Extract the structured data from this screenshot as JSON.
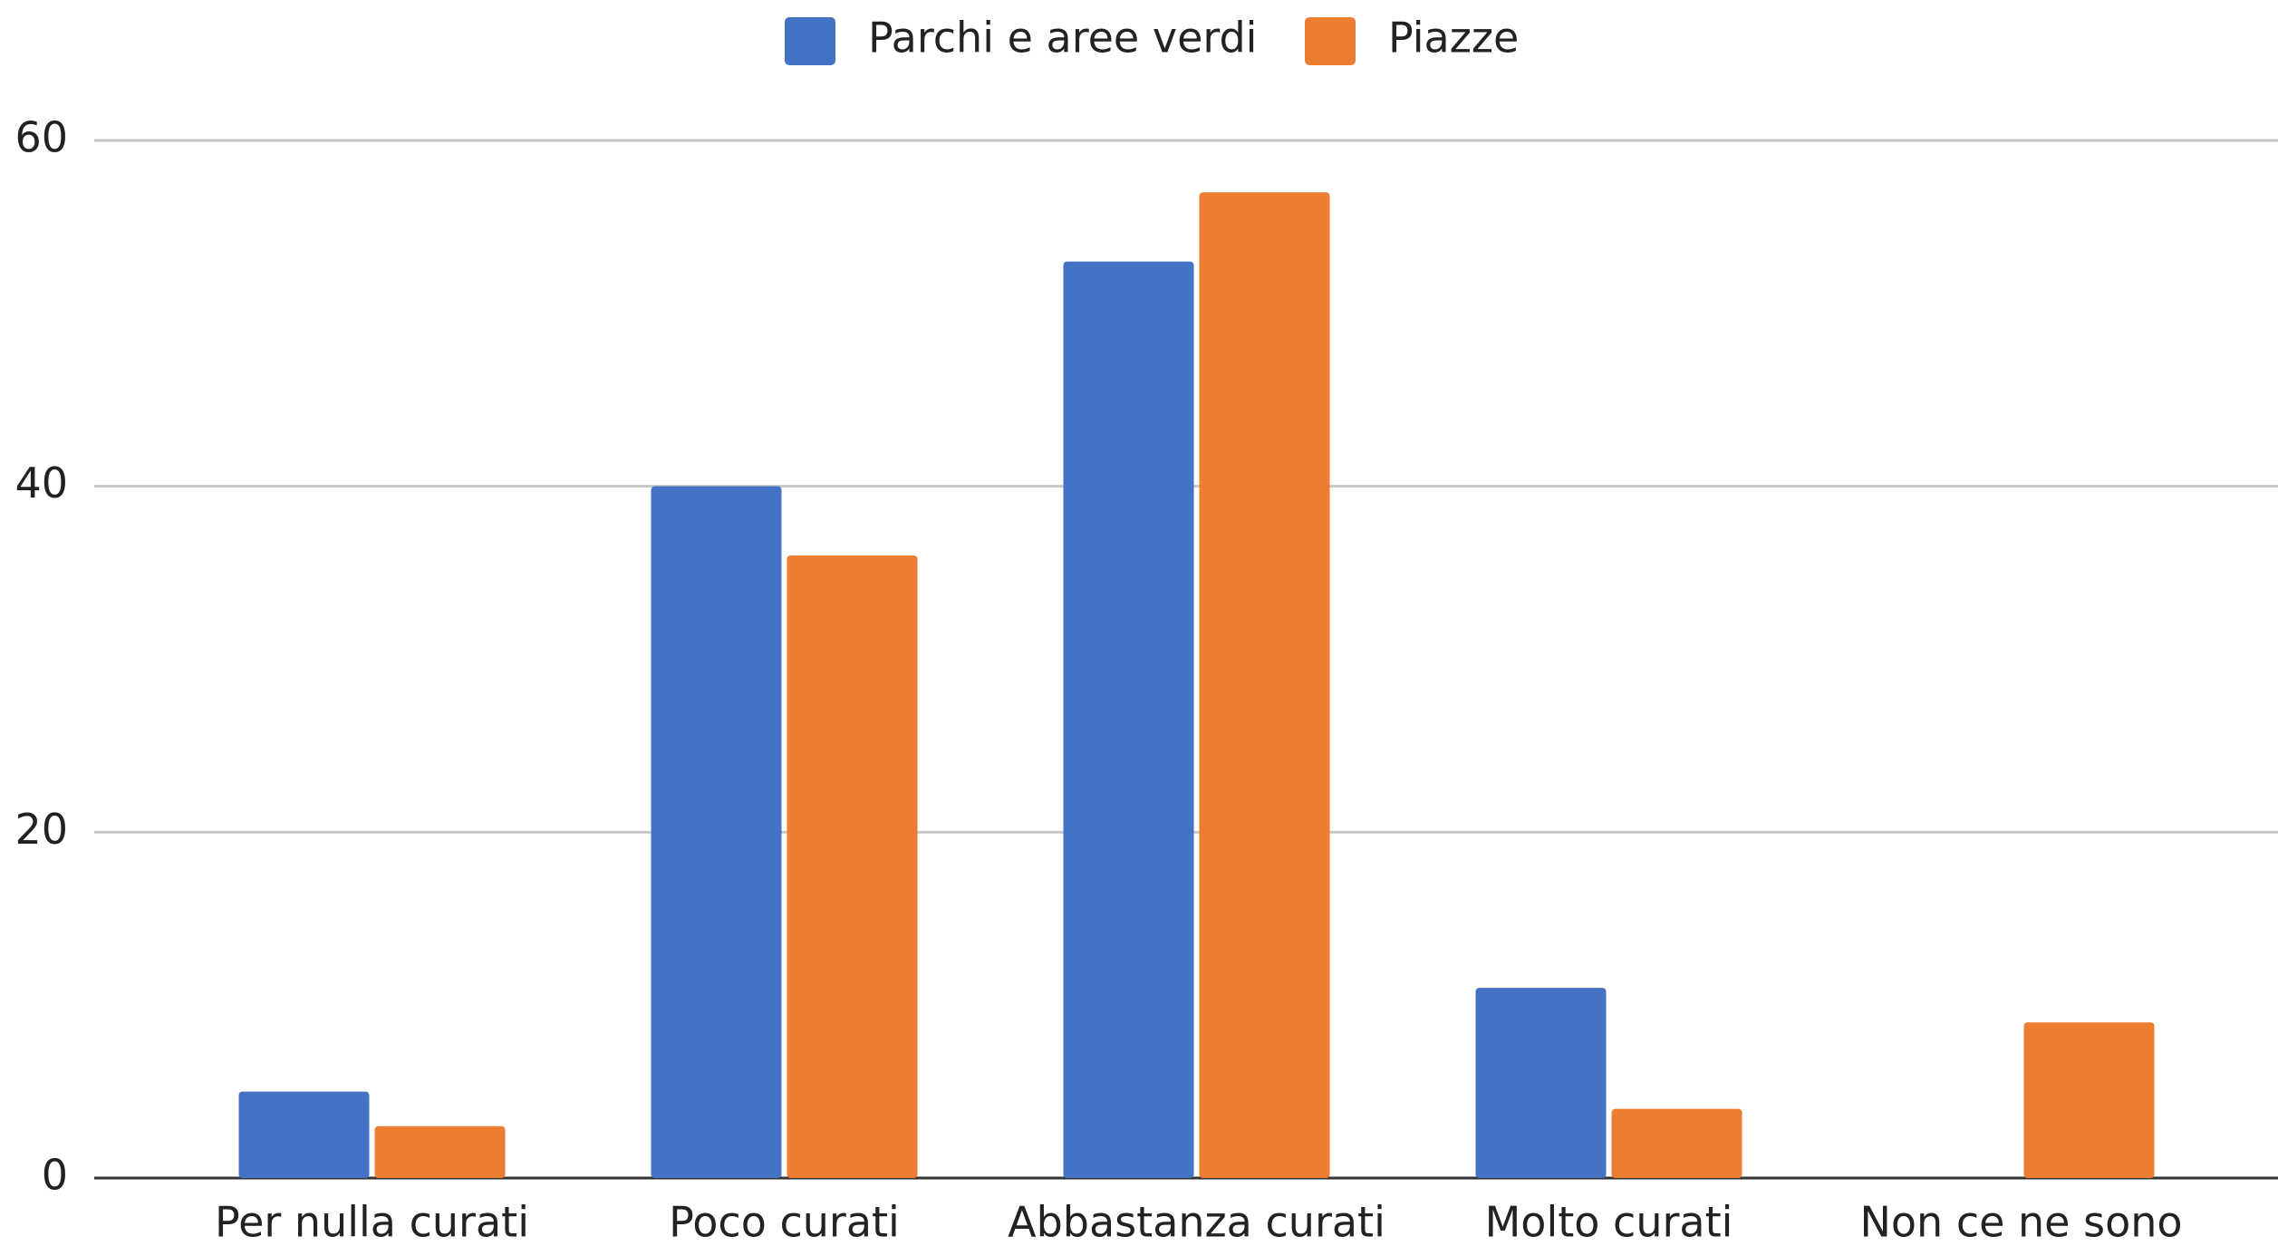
{
  "chart_data": {
    "type": "bar",
    "categories": [
      "Per nulla curati",
      "Poco curati",
      "Abbastanza curati",
      "Molto curati",
      "Non ce ne sono"
    ],
    "series": [
      {
        "name": "Parchi e aree verdi",
        "color": "#4472c4",
        "values": [
          5,
          40,
          53,
          11,
          0
        ]
      },
      {
        "name": "Piazze",
        "color": "#ed7d31",
        "values": [
          3,
          36,
          57,
          4,
          9
        ]
      }
    ],
    "ylim": [
      0,
      60
    ],
    "yticks": [
      0,
      20,
      40,
      60
    ],
    "grid": true,
    "legend": "top"
  }
}
